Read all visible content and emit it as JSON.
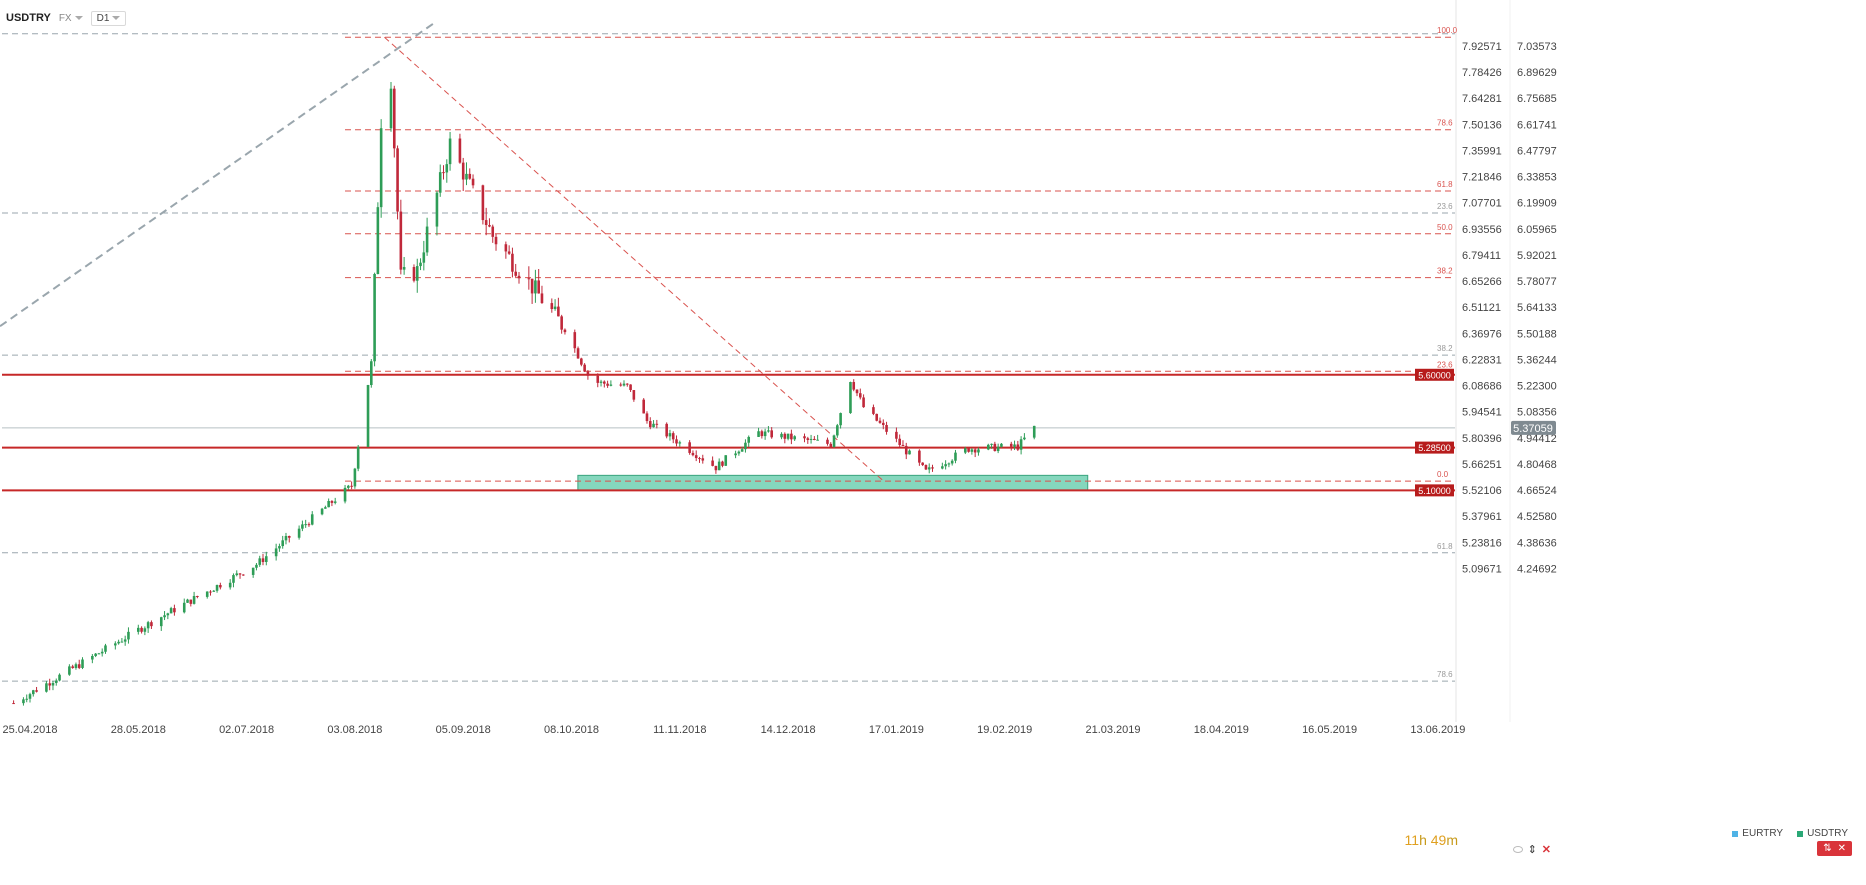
{
  "toolbar": {
    "symbol": "USDTRY",
    "market": "FX",
    "timeframe": "D1"
  },
  "countdown": {
    "hours": "11",
    "h_unit": "h",
    "minutes": "49",
    "m_unit": "m"
  },
  "legend": [
    {
      "name": "EURTRY",
      "color": "#4fb3e6"
    },
    {
      "name": "USDTRY",
      "color": "#2aa876"
    }
  ],
  "colors": {
    "up": "#2e9d57",
    "down": "#c0283a",
    "level": "#c62828",
    "fib": "#d9534f",
    "grey": "#9aa6ad",
    "zone": "#5cc9a7"
  },
  "chart_data": {
    "type": "candlestick",
    "title": "",
    "xlabel": "",
    "ylabel": "",
    "x_ticks": [
      "25.04.2018",
      "28.05.2018",
      "02.07.2018",
      "03.08.2018",
      "05.09.2018",
      "08.10.2018",
      "11.11.2018",
      "14.12.2018",
      "17.01.2019",
      "19.02.2019",
      "21.03.2019",
      "18.04.2019",
      "16.05.2019",
      "13.06.2019"
    ],
    "y_ticks_inner": [
      "7.92571",
      "7.78426",
      "7.64281",
      "7.50136",
      "7.35991",
      "7.21846",
      "7.07701",
      "6.93556",
      "6.79411",
      "6.65266",
      "6.51121",
      "6.36976",
      "6.22831",
      "6.08686",
      "5.94541",
      "5.80396",
      "5.66251",
      "5.52106",
      "5.37961",
      "5.23816",
      "5.09671"
    ],
    "y_ticks_outer": [
      "7.03573",
      "6.89629",
      "6.75685",
      "6.61741",
      "6.47797",
      "6.33853",
      "6.19909",
      "6.05965",
      "5.92021",
      "5.78077",
      "5.64133",
      "5.50188",
      "5.36244",
      "5.22300",
      "5.08356",
      "4.94412",
      "4.80468",
      "4.66524",
      "4.52580",
      "4.38636",
      "4.24692"
    ],
    "ylim": [
      4.15,
      7.1
    ],
    "current_price": "5.37059",
    "levels": [
      {
        "label": "5.60000",
        "value": 5.6
      },
      {
        "label": "5.28500",
        "value": 5.285
      },
      {
        "label": "5.10000",
        "value": 5.1
      }
    ],
    "fib_red": [
      {
        "label": "100.0",
        "value": 7.06
      },
      {
        "label": "78.6",
        "value": 6.66
      },
      {
        "label": "61.8",
        "value": 6.395
      },
      {
        "label": "50.0",
        "value": 6.21
      },
      {
        "label": "38.2",
        "value": 6.02
      },
      {
        "label": "23.6",
        "value": 5.615
      },
      {
        "label": "0.0",
        "value": 5.14
      }
    ],
    "fib_grey": [
      {
        "label": "23.6",
        "value": 6.3
      },
      {
        "label": "38.2",
        "value": 5.685
      },
      {
        "label": "61.8",
        "value": 4.83
      },
      {
        "label": "78.6",
        "value": 4.275
      }
    ],
    "support_zone": {
      "from_date": "10.10.2018",
      "to_date": "14.03.2019",
      "low": 5.1,
      "high": 5.165
    },
    "anchors": [
      {
        "date": "20.04.2018",
        "value": 4.18
      },
      {
        "date": "01.06.2018",
        "value": 4.53
      },
      {
        "date": "03.07.2018",
        "value": 4.78
      },
      {
        "date": "01.08.2018",
        "value": 5.12
      },
      {
        "date": "07.08.2018",
        "value": 5.65
      },
      {
        "date": "10.08.2018",
        "value": 6.7
      },
      {
        "date": "13.08.2018",
        "value": 6.88
      },
      {
        "date": "16.08.2018",
        "value": 6.02
      },
      {
        "date": "21.08.2018",
        "value": 6.05
      },
      {
        "date": "31.08.2018",
        "value": 6.6
      },
      {
        "date": "13.09.2018",
        "value": 6.2
      },
      {
        "date": "05.10.2018",
        "value": 5.8
      },
      {
        "date": "13.10.2018",
        "value": 5.57
      },
      {
        "date": "24.10.2018",
        "value": 5.55
      },
      {
        "date": "30.10.2018",
        "value": 5.4
      },
      {
        "date": "20.11.2018",
        "value": 5.2
      },
      {
        "date": "03.12.2018",
        "value": 5.35
      },
      {
        "date": "25.12.2018",
        "value": 5.3
      },
      {
        "date": "31.12.2018",
        "value": 5.58
      },
      {
        "date": "04.01.2019",
        "value": 5.46
      },
      {
        "date": "15.01.2019",
        "value": 5.3
      },
      {
        "date": "23.01.2019",
        "value": 5.18
      },
      {
        "date": "05.02.2019",
        "value": 5.28
      },
      {
        "date": "20.02.2019",
        "value": 5.29
      },
      {
        "date": "25.02.2019",
        "value": 5.37
      }
    ]
  }
}
